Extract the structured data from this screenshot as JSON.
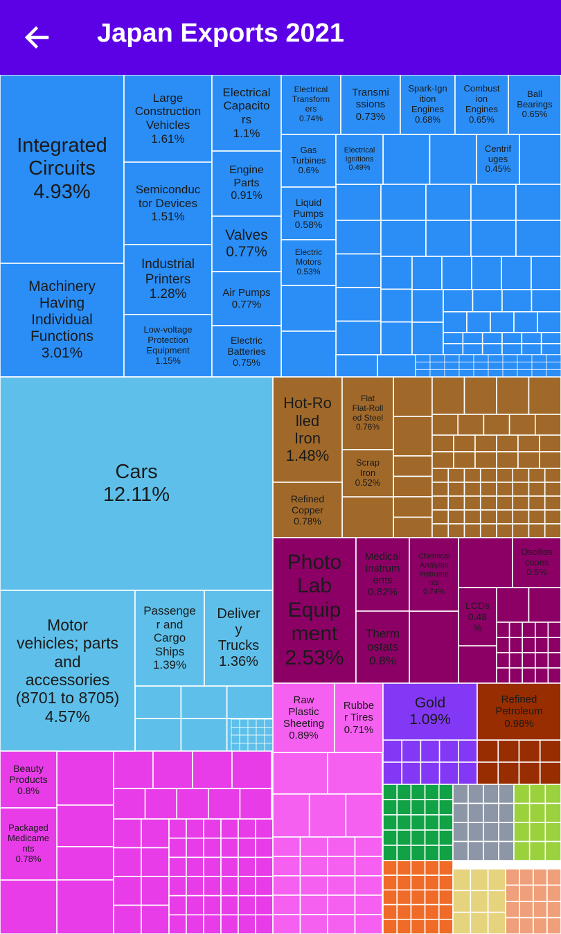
{
  "header": {
    "title": "Japan Exports 2021",
    "back_icon": "arrow-left-icon"
  },
  "colors": {
    "header_bg": "#5c00e6",
    "machinery": "#2a8ef6",
    "transport": "#5ec0ea",
    "metals": "#a0692a",
    "instruments": "#8c0066",
    "chemicals": "#e83ce8",
    "plastics_rubber": "#f560f0",
    "precious_metals": "#8338f5",
    "mineral_products": "#972d00",
    "sector_green": "#10a244",
    "sector_gray": "#8c96a6",
    "sector_lime": "#9ad13c",
    "sector_orange": "#ef6b27",
    "sector_khaki": "#e6d37e",
    "sector_salmon": "#efa07a"
  },
  "chart_data": {
    "type": "treemap",
    "title": "Japan Exports 2021",
    "unit": "%",
    "items": [
      {
        "label": "Integrated Circuits",
        "value": 4.93,
        "sector": "machinery"
      },
      {
        "label": "Machinery Having Individual Functions",
        "value": 3.01,
        "sector": "machinery"
      },
      {
        "label": "Large Construction Vehicles",
        "value": 1.61,
        "sector": "machinery"
      },
      {
        "label": "Semiconductor Devices",
        "value": 1.51,
        "sector": "machinery"
      },
      {
        "label": "Industrial Printers",
        "value": 1.28,
        "sector": "machinery"
      },
      {
        "label": "Low-voltage Protection Equipment",
        "value": 1.15,
        "sector": "machinery"
      },
      {
        "label": "Electrical Capacitors",
        "value": 1.1,
        "sector": "machinery"
      },
      {
        "label": "Engine Parts",
        "value": 0.91,
        "sector": "machinery"
      },
      {
        "label": "Valves",
        "value": 0.77,
        "sector": "machinery"
      },
      {
        "label": "Air Pumps",
        "value": 0.77,
        "sector": "machinery"
      },
      {
        "label": "Electric Batteries",
        "value": 0.75,
        "sector": "machinery"
      },
      {
        "label": "Electrical Transformers",
        "value": 0.74,
        "sector": "machinery"
      },
      {
        "label": "Transmissions",
        "value": 0.73,
        "sector": "machinery"
      },
      {
        "label": "Spark-Ignition Engines",
        "value": 0.68,
        "sector": "machinery"
      },
      {
        "label": "Combustion Engines",
        "value": 0.65,
        "sector": "machinery"
      },
      {
        "label": "Ball Bearings",
        "value": 0.65,
        "sector": "machinery"
      },
      {
        "label": "Gas Turbines",
        "value": 0.6,
        "sector": "machinery"
      },
      {
        "label": "Electrical Ignitions",
        "value": 0.49,
        "sector": "machinery"
      },
      {
        "label": "Centrifuges",
        "value": 0.45,
        "sector": "machinery"
      },
      {
        "label": "Liquid Pumps",
        "value": 0.58,
        "sector": "machinery"
      },
      {
        "label": "Electric Motors",
        "value": 0.53,
        "sector": "machinery"
      },
      {
        "label": "Cars",
        "value": 12.11,
        "sector": "transport"
      },
      {
        "label": "Motor vehicles; parts and accessories (8701 to 8705)",
        "value": 4.57,
        "sector": "transport"
      },
      {
        "label": "Passenger and Cargo Ships",
        "value": 1.39,
        "sector": "transport"
      },
      {
        "label": "Delivery Trucks",
        "value": 1.36,
        "sector": "transport"
      },
      {
        "label": "Hot-Rolled Iron",
        "value": 1.48,
        "sector": "metals"
      },
      {
        "label": "Flat Flat-Rolled Steel",
        "value": 0.76,
        "sector": "metals"
      },
      {
        "label": "Scrap Iron",
        "value": 0.52,
        "sector": "metals"
      },
      {
        "label": "Refined Copper",
        "value": 0.78,
        "sector": "metals"
      },
      {
        "label": "Photo Lab Equipment",
        "value": 2.53,
        "sector": "instruments"
      },
      {
        "label": "Medical Instruments",
        "value": 0.82,
        "sector": "instruments"
      },
      {
        "label": "Chemical Analysis Instruments",
        "value": 0.74,
        "sector": "instruments"
      },
      {
        "label": "Oscilloscopes",
        "value": 0.5,
        "sector": "instruments"
      },
      {
        "label": "LCDs",
        "value": 0.48,
        "sector": "instruments"
      },
      {
        "label": "Thermostats",
        "value": 0.8,
        "sector": "instruments"
      },
      {
        "label": "Beauty Products",
        "value": 0.8,
        "sector": "chemicals"
      },
      {
        "label": "Packaged Medicaments",
        "value": 0.78,
        "sector": "chemicals"
      },
      {
        "label": "Raw Plastic Sheeting",
        "value": 0.89,
        "sector": "plastics_rubber"
      },
      {
        "label": "Rubber Tires",
        "value": 0.71,
        "sector": "plastics_rubber"
      },
      {
        "label": "Gold",
        "value": 1.09,
        "sector": "precious_metals"
      },
      {
        "label": "Refined Petroleum",
        "value": 0.98,
        "sector": "mineral_products"
      }
    ],
    "label_lines": {
      "Integrated Circuits": [
        "Integrated",
        "Circuits",
        "4.93%"
      ],
      "Machinery Having Individual Functions": [
        "Machinery",
        "Having",
        "Individual",
        "Functions",
        "3.01%"
      ],
      "Large Construction Vehicles": [
        "Large",
        "Construction",
        "Vehicles",
        "1.61%"
      ],
      "Semiconductor Devices": [
        "Semiconduc",
        "tor Devices",
        "1.51%"
      ],
      "Industrial Printers": [
        "Industrial",
        "Printers",
        "1.28%"
      ],
      "Low-voltage Protection Equipment": [
        "Low-voltage",
        "Protection",
        "Equipment",
        "1.15%"
      ],
      "Electrical Capacitors": [
        "Electrical",
        "Capacito",
        "rs",
        "1.1%"
      ],
      "Engine Parts": [
        "Engine",
        "Parts",
        "0.91%"
      ],
      "Valves": [
        "Valves",
        "0.77%"
      ],
      "Air Pumps": [
        "Air Pumps",
        "0.77%"
      ],
      "Electric Batteries": [
        "Electric",
        "Batteries",
        "0.75%"
      ],
      "Electrical Transformers": [
        "Electrical",
        "Transform",
        "ers",
        "0.74%"
      ],
      "Transmissions": [
        "Transmi",
        "ssions",
        "0.73%"
      ],
      "Spark-Ignition Engines": [
        "Spark-Ign",
        "ition",
        "Engines",
        "0.68%"
      ],
      "Combustion Engines": [
        "Combust",
        "ion",
        "Engines",
        "0.65%"
      ],
      "Ball Bearings": [
        "Ball",
        "Bearings",
        "0.65%"
      ],
      "Gas Turbines": [
        "Gas",
        "Turbines",
        "0.6%"
      ],
      "Electrical Ignitions": [
        "Electrical",
        "Ignitions",
        "0.49%"
      ],
      "Centrifuges": [
        "Centrif",
        "uges",
        "0.45%"
      ],
      "Liquid Pumps": [
        "Liquid",
        "Pumps",
        "0.58%"
      ],
      "Electric Motors": [
        "Electric",
        "Motors",
        "0.53%"
      ],
      "Cars": [
        "Cars",
        "12.11%"
      ],
      "Motor vehicles; parts and accessories (8701 to 8705)": [
        "Motor",
        "vehicles; parts",
        "and",
        "accessories",
        "(8701 to 8705)",
        "4.57%"
      ],
      "Passenger and Cargo Ships": [
        "Passenge",
        "r and",
        "Cargo",
        "Ships",
        "1.39%"
      ],
      "Delivery Trucks": [
        "Deliver",
        "y",
        "Trucks",
        "1.36%"
      ],
      "Hot-Rolled Iron": [
        "Hot-Ro",
        "lled",
        "Iron",
        "1.48%"
      ],
      "Flat Flat-Rolled Steel": [
        "Flat",
        "Flat-Roll",
        "ed Steel",
        "0.76%"
      ],
      "Scrap Iron": [
        "Scrap",
        "Iron",
        "0.52%"
      ],
      "Refined Copper": [
        "Refined",
        "Copper",
        "0.78%"
      ],
      "Photo Lab Equipment": [
        "Photo",
        "Lab",
        "Equip",
        "ment",
        "2.53%"
      ],
      "Medical Instruments": [
        "Medical",
        "Instrum",
        "ents",
        "0.82%"
      ],
      "Chemical Analysis Instruments": [
        "Chemical",
        "Analysis",
        "Instrume",
        "nts",
        "0.74%"
      ],
      "Oscilloscopes": [
        "Oscillos",
        "copes",
        "0.5%"
      ],
      "LCDs": [
        "LCDs",
        "0.48",
        "%"
      ],
      "Thermostats": [
        "Therm",
        "ostats",
        "0.8%"
      ],
      "Beauty Products": [
        "Beauty",
        "Products",
        "0.8%"
      ],
      "Packaged Medicaments": [
        "Packaged",
        "Medicame",
        "nts",
        "0.78%"
      ],
      "Raw Plastic Sheeting": [
        "Raw",
        "Plastic",
        "Sheeting",
        "0.89%"
      ],
      "Rubber Tires": [
        "Rubbe",
        "r Tires",
        "0.71%"
      ],
      "Gold": [
        "Gold",
        "1.09%"
      ],
      "Refined Petroleum": [
        "Refined",
        "Petroleum",
        "0.98%"
      ]
    }
  }
}
